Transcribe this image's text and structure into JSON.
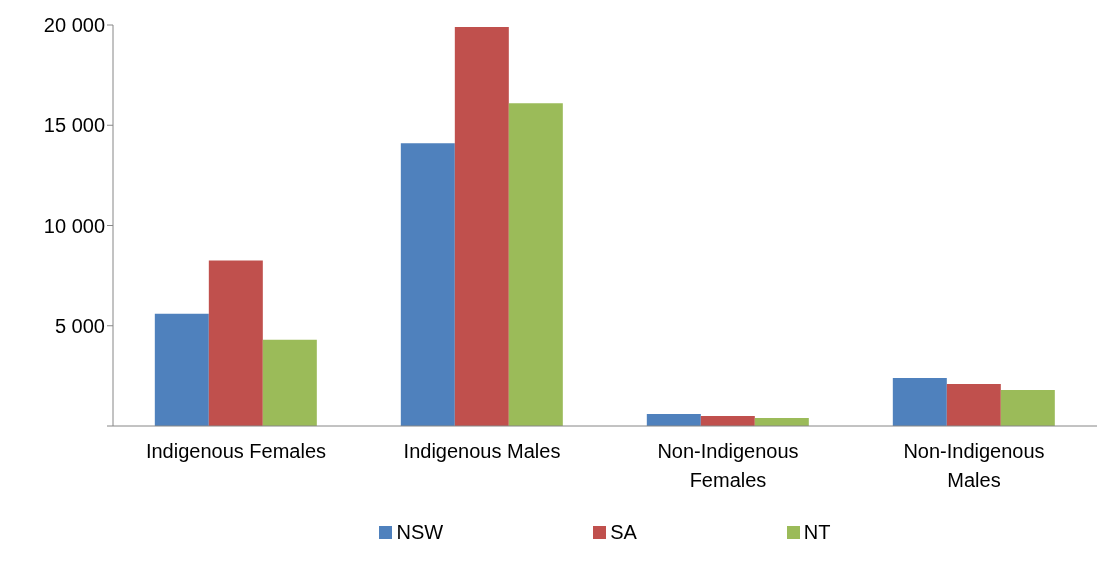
{
  "chart_data": {
    "type": "bar",
    "categories": [
      "Indigenous Females",
      "Indigenous Males",
      "Non-Indigenous Females",
      "Non-Indigenous Males"
    ],
    "series": [
      {
        "name": "NSW",
        "color": "#4f81bd",
        "values": [
          5600,
          14100,
          600,
          2400
        ]
      },
      {
        "name": "SA",
        "color": "#c0504d",
        "values": [
          8250,
          19900,
          500,
          2100
        ]
      },
      {
        "name": "NT",
        "color": "#9bbb59",
        "values": [
          4300,
          16100,
          400,
          1800
        ]
      }
    ],
    "ylim": [
      0,
      20000
    ],
    "yticks": [
      {
        "value": 0,
        "label": null
      },
      {
        "value": 5000,
        "label": "5 000"
      },
      {
        "value": 10000,
        "label": "10 000"
      },
      {
        "value": 15000,
        "label": "15 000"
      },
      {
        "value": 20000,
        "label": "20 000"
      }
    ],
    "legend": "bottom"
  }
}
